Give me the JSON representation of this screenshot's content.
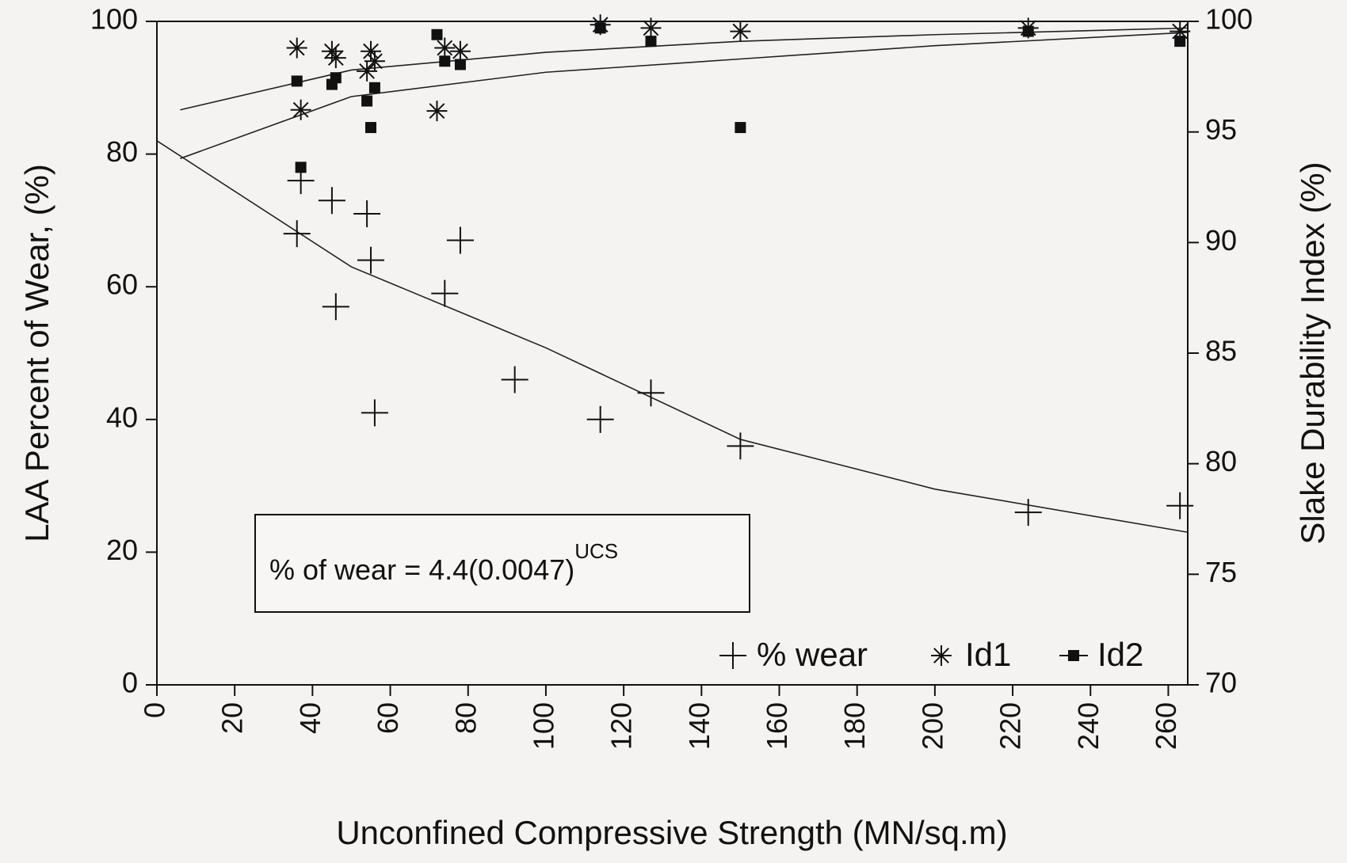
{
  "chart_data": {
    "type": "scatter",
    "xlabel": "Unconfined Compressive Strength (MN/sq.m)",
    "ylabel": "LAA Percent of Wear, (%)",
    "y2label": "Slake Durability Index (%)",
    "xlim": [
      0,
      265
    ],
    "xticks": [
      0,
      20,
      40,
      60,
      80,
      100,
      120,
      140,
      160,
      180,
      200,
      220,
      240,
      260
    ],
    "ylim": [
      0,
      100
    ],
    "yticks": [
      0,
      20,
      40,
      60,
      80,
      100
    ],
    "y2lim": [
      70,
      100
    ],
    "y2ticks": [
      70,
      75,
      80,
      85,
      90,
      95,
      100
    ],
    "legend": "lower right",
    "series": [
      {
        "name": "% wear",
        "marker": "plus",
        "color": "#111111",
        "x": [
          36,
          37,
          45,
          46,
          54,
          55,
          56,
          74,
          78,
          92,
          114,
          127,
          150,
          224,
          263
        ],
        "values": [
          68,
          76,
          73,
          57,
          71,
          64,
          41,
          59,
          67,
          46,
          40,
          44,
          36,
          26,
          27
        ]
      },
      {
        "name": "Id1",
        "marker": "asterisk",
        "color": "#111111",
        "axis": "y2",
        "x": [
          36,
          37,
          45,
          46,
          54,
          55,
          56,
          72,
          74,
          78,
          114,
          127,
          150,
          224,
          263
        ],
        "values": [
          98.8,
          96.0,
          98.65,
          98.35,
          97.75,
          98.65,
          98.2,
          95.95,
          98.8,
          98.65,
          99.85,
          99.7,
          99.55,
          99.7,
          99.55
        ]
      },
      {
        "name": "Id2",
        "marker": "square",
        "color": "#111111",
        "axis": "y2",
        "x": [
          36,
          37,
          45,
          46,
          54,
          55,
          56,
          72,
          74,
          78,
          114,
          127,
          150,
          224,
          263
        ],
        "values": [
          97.3,
          93.4,
          97.15,
          97.45,
          96.4,
          95.2,
          97.0,
          99.4,
          98.2,
          98.05,
          99.7,
          99.1,
          95.2,
          99.55,
          99.1
        ]
      }
    ],
    "fit_curves": [
      {
        "color": "#222222",
        "x": [
          0,
          50,
          100,
          150,
          200,
          265
        ],
        "values": [
          82,
          63,
          50.8,
          37,
          29.5,
          23
        ]
      },
      {
        "color": "#222222",
        "axis": "y2",
        "x": [
          6,
          50,
          100,
          150,
          200,
          265
        ],
        "values": [
          96.0,
          97.8,
          98.6,
          99.1,
          99.4,
          99.7
        ]
      },
      {
        "color": "#222222",
        "axis": "y2",
        "x": [
          6,
          50,
          100,
          150,
          200,
          265
        ],
        "values": [
          93.8,
          96.6,
          97.7,
          98.3,
          98.9,
          99.5
        ]
      }
    ],
    "annotation": {
      "text": "% of wear = 4.4(0.0047)",
      "superscript": "UCS"
    }
  }
}
